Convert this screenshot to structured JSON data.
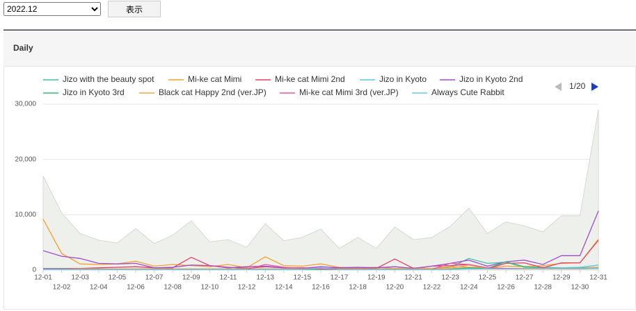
{
  "controls": {
    "month": "2022.12",
    "button": "表示"
  },
  "panel": {
    "title": "Daily",
    "legend_page": "1/20"
  },
  "chart_data": {
    "type": "line",
    "categories": [
      "12-01",
      "12-02",
      "12-03",
      "12-04",
      "12-05",
      "12-06",
      "12-07",
      "12-08",
      "12-09",
      "12-10",
      "12-11",
      "12-12",
      "12-13",
      "12-14",
      "12-15",
      "12-16",
      "12-17",
      "12-18",
      "12-19",
      "12-20",
      "12-21",
      "12-22",
      "12-23",
      "12-24",
      "12-25",
      "12-26",
      "12-27",
      "12-28",
      "12-29",
      "12-30",
      "12-31"
    ],
    "ylim": [
      0,
      30000
    ],
    "yticks": [
      0,
      {
        "value": 10000,
        "label": "10,000"
      },
      {
        "value": 20000,
        "label": "20,000"
      },
      {
        "value": 30000,
        "label": "30,000"
      }
    ],
    "grid": true,
    "total_area": {
      "color": "#eef0ec",
      "values": [
        17000,
        10300,
        6600,
        5400,
        4900,
        7500,
        4800,
        6300,
        8900,
        5100,
        5500,
        4100,
        8400,
        5300,
        5900,
        7400,
        3900,
        5900,
        3900,
        7800,
        5500,
        5900,
        7900,
        11200,
        6600,
        8700,
        8000,
        6900,
        9800,
        9800,
        29000
      ]
    },
    "series": [
      {
        "name": "Jizo with the beauty spot",
        "color": "#3cbfb0",
        "values": [
          300,
          200,
          200,
          200,
          200,
          200,
          200,
          200,
          200,
          200,
          200,
          200,
          200,
          200,
          200,
          200,
          200,
          200,
          200,
          200,
          200,
          300,
          500,
          2100,
          1200,
          1400,
          500,
          500,
          400,
          400,
          500
        ]
      },
      {
        "name": "Mi-ke cat Mimi",
        "color": "#f5a030",
        "values": [
          9200,
          3000,
          1100,
          1000,
          1100,
          1600,
          700,
          1000,
          800,
          600,
          1000,
          400,
          2400,
          800,
          700,
          1100,
          500,
          400,
          500,
          300,
          400,
          300,
          600,
          500,
          400,
          700,
          600,
          800,
          1200,
          1300,
          5600
        ]
      },
      {
        "name": "Mi-ke cat Mimi 2nd",
        "color": "#e0406a",
        "values": [
          300,
          300,
          300,
          400,
          500,
          600,
          400,
          400,
          2300,
          800,
          500,
          300,
          600,
          400,
          400,
          300,
          300,
          300,
          300,
          2000,
          300,
          700,
          800,
          1000,
          300,
          1200,
          1300,
          400,
          1300,
          1300,
          5400
        ]
      },
      {
        "name": "Jizo in Kyoto",
        "color": "#5bc8d8",
        "values": [
          200,
          200,
          200,
          200,
          200,
          200,
          200,
          200,
          200,
          200,
          200,
          200,
          200,
          200,
          200,
          200,
          200,
          200,
          200,
          200,
          200,
          200,
          200,
          300,
          300,
          300,
          300,
          300,
          400,
          500,
          900
        ]
      },
      {
        "name": "Jizo in Kyoto 2nd",
        "color": "#a04ccf",
        "values": [
          3500,
          2500,
          2100,
          1200,
          1100,
          1200,
          400,
          500,
          900,
          800,
          400,
          600,
          700,
          400,
          300,
          600,
          400,
          500,
          400,
          600,
          300,
          700,
          1200,
          1800,
          700,
          1500,
          1800,
          1000,
          2600,
          2600,
          10700
        ]
      },
      {
        "name": "Jizo in Kyoto 3rd",
        "color": "#3cb878",
        "values": [
          100,
          100,
          100,
          100,
          100,
          100,
          100,
          100,
          100,
          100,
          100,
          100,
          100,
          100,
          100,
          100,
          100,
          100,
          100,
          100,
          100,
          100,
          200,
          400,
          300,
          1500,
          600,
          300,
          300,
          300,
          400
        ]
      },
      {
        "name": "Black cat Happy 2nd (ver.JP)",
        "color": "#f6a64a",
        "values": [
          100,
          100,
          200,
          200,
          200,
          200,
          200,
          200,
          200,
          200,
          200,
          200,
          200,
          200,
          200,
          200,
          200,
          200,
          200,
          200,
          200,
          200,
          300,
          900,
          300,
          300,
          300,
          300,
          300,
          300,
          500
        ]
      },
      {
        "name": "Mi-ke cat Mimi 3rd (ver.JP)",
        "color": "#e8559a",
        "values": [
          100,
          100,
          100,
          100,
          100,
          100,
          100,
          100,
          100,
          100,
          100,
          100,
          1000,
          500,
          300,
          200,
          100,
          100,
          100,
          100,
          100,
          100,
          1200,
          1000,
          400,
          300,
          200,
          200,
          200,
          200,
          300
        ]
      },
      {
        "name": "Always Cute Rabbit",
        "color": "#6cc6e8",
        "values": [
          100,
          100,
          100,
          100,
          100,
          100,
          100,
          100,
          100,
          100,
          100,
          100,
          100,
          100,
          100,
          400,
          100,
          100,
          100,
          100,
          100,
          100,
          100,
          200,
          200,
          200,
          200,
          200,
          200,
          200,
          300
        ]
      }
    ]
  }
}
